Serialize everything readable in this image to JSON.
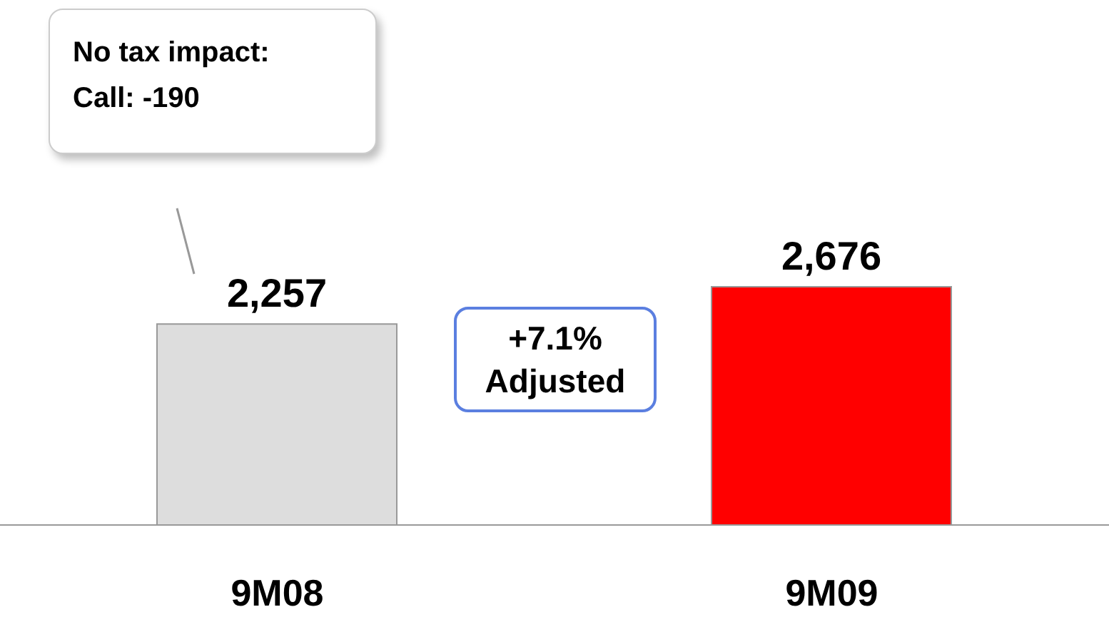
{
  "chart_data": {
    "type": "bar",
    "categories": [
      "9M08",
      "9M09"
    ],
    "colors": [
      "#dddddd",
      "#ff0000"
    ],
    "values": [
      2257,
      2676
    ],
    "value_labels": [
      "2,257",
      "2,676"
    ],
    "annotations": [
      "No tax impact: Call: -190",
      "+7.1% Adjusted"
    ]
  }
}
